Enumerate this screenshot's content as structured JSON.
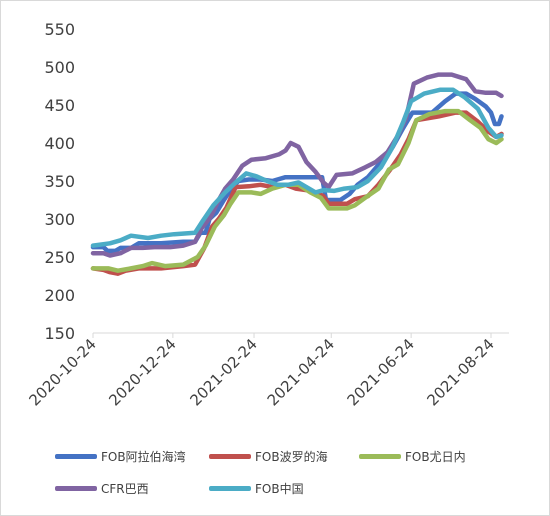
{
  "chart_data": {
    "type": "line",
    "ylim": [
      150,
      550
    ],
    "yticks": [
      150,
      200,
      250,
      300,
      350,
      400,
      450,
      500,
      550
    ],
    "xlim": [
      "2020-10-24",
      "2021-09-01"
    ],
    "xticks": [
      "2020-10-24",
      "2020-12-24",
      "2021-02-24",
      "2021-04-24",
      "2021-06-24",
      "2021-08-24"
    ],
    "grid": false,
    "legend_position": "bottom",
    "series": [
      {
        "name": "FOB阿拉伯海湾",
        "color": "#4472c4",
        "points": [
          [
            "2020-10-24",
            263
          ],
          [
            "2020-11-01",
            263
          ],
          [
            "2020-11-04",
            258
          ],
          [
            "2020-11-10",
            258
          ],
          [
            "2020-11-14",
            262
          ],
          [
            "2020-11-22",
            262
          ],
          [
            "2020-11-28",
            268
          ],
          [
            "2020-12-15",
            268
          ],
          [
            "2021-01-01",
            270
          ],
          [
            "2021-01-10",
            270
          ],
          [
            "2021-01-14",
            282
          ],
          [
            "2021-01-18",
            282
          ],
          [
            "2021-01-21",
            300
          ],
          [
            "2021-01-26",
            308
          ],
          [
            "2021-02-01",
            325
          ],
          [
            "2021-02-06",
            338
          ],
          [
            "2021-02-12",
            350
          ],
          [
            "2021-02-20",
            352
          ],
          [
            "2021-03-01",
            352
          ],
          [
            "2021-03-10",
            350
          ],
          [
            "2021-03-20",
            355
          ],
          [
            "2021-04-01",
            355
          ],
          [
            "2021-04-17",
            355
          ],
          [
            "2021-04-20",
            325
          ],
          [
            "2021-05-01",
            325
          ],
          [
            "2021-05-08",
            333
          ],
          [
            "2021-05-14",
            345
          ],
          [
            "2021-05-22",
            355
          ],
          [
            "2021-06-01",
            375
          ],
          [
            "2021-06-10",
            395
          ],
          [
            "2021-06-18",
            420
          ],
          [
            "2021-06-25",
            440
          ],
          [
            "2021-07-10",
            440
          ],
          [
            "2021-07-20",
            455
          ],
          [
            "2021-07-28",
            465
          ],
          [
            "2021-08-05",
            465
          ],
          [
            "2021-08-12",
            458
          ],
          [
            "2021-08-20",
            448
          ],
          [
            "2021-08-24",
            440
          ],
          [
            "2021-08-27",
            425
          ],
          [
            "2021-08-30",
            425
          ],
          [
            "2021-09-01",
            435
          ]
        ]
      },
      {
        "name": "FOB波罗的海",
        "color": "#c0504d",
        "points": [
          [
            "2020-10-24",
            235
          ],
          [
            "2020-11-01",
            233
          ],
          [
            "2020-11-06",
            230
          ],
          [
            "2020-11-12",
            228
          ],
          [
            "2020-11-18",
            232
          ],
          [
            "2020-11-28",
            235
          ],
          [
            "2020-12-15",
            235
          ],
          [
            "2021-01-01",
            238
          ],
          [
            "2021-01-10",
            240
          ],
          [
            "2021-01-17",
            262
          ],
          [
            "2021-01-23",
            290
          ],
          [
            "2021-01-28",
            300
          ],
          [
            "2021-02-03",
            315
          ],
          [
            "2021-02-10",
            342
          ],
          [
            "2021-02-20",
            343
          ],
          [
            "2021-03-01",
            345
          ],
          [
            "2021-03-10",
            342
          ],
          [
            "2021-03-20",
            345
          ],
          [
            "2021-03-28",
            340
          ],
          [
            "2021-04-05",
            338
          ],
          [
            "2021-04-12",
            335
          ],
          [
            "2021-04-18",
            330
          ],
          [
            "2021-04-22",
            320
          ],
          [
            "2021-05-06",
            320
          ],
          [
            "2021-05-12",
            326
          ],
          [
            "2021-05-22",
            330
          ],
          [
            "2021-05-30",
            345
          ],
          [
            "2021-06-08",
            365
          ],
          [
            "2021-06-16",
            385
          ],
          [
            "2021-06-22",
            405
          ],
          [
            "2021-06-28",
            430
          ],
          [
            "2021-07-15",
            435
          ],
          [
            "2021-07-28",
            440
          ],
          [
            "2021-08-05",
            440
          ],
          [
            "2021-08-14",
            428
          ],
          [
            "2021-08-22",
            415
          ],
          [
            "2021-08-28",
            408
          ],
          [
            "2021-09-01",
            412
          ]
        ]
      },
      {
        "name": "FOB尤日内",
        "color": "#9bbb59",
        "points": [
          [
            "2020-10-24",
            235
          ],
          [
            "2020-11-05",
            235
          ],
          [
            "2020-11-12",
            232
          ],
          [
            "2020-11-22",
            235
          ],
          [
            "2020-12-01",
            238
          ],
          [
            "2020-12-08",
            242
          ],
          [
            "2020-12-18",
            238
          ],
          [
            "2021-01-01",
            240
          ],
          [
            "2021-01-12",
            250
          ],
          [
            "2021-01-18",
            265
          ],
          [
            "2021-01-25",
            290
          ],
          [
            "2021-02-01",
            305
          ],
          [
            "2021-02-06",
            320
          ],
          [
            "2021-02-12",
            335
          ],
          [
            "2021-02-22",
            335
          ],
          [
            "2021-03-01",
            333
          ],
          [
            "2021-03-10",
            340
          ],
          [
            "2021-03-20",
            345
          ],
          [
            "2021-03-30",
            345
          ],
          [
            "2021-04-08",
            335
          ],
          [
            "2021-04-16",
            328
          ],
          [
            "2021-04-22",
            314
          ],
          [
            "2021-05-06",
            314
          ],
          [
            "2021-05-12",
            318
          ],
          [
            "2021-05-20",
            328
          ],
          [
            "2021-05-30",
            340
          ],
          [
            "2021-06-07",
            365
          ],
          [
            "2021-06-14",
            372
          ],
          [
            "2021-06-22",
            400
          ],
          [
            "2021-06-28",
            430
          ],
          [
            "2021-07-08",
            438
          ],
          [
            "2021-07-20",
            442
          ],
          [
            "2021-07-30",
            442
          ],
          [
            "2021-08-08",
            430
          ],
          [
            "2021-08-16",
            420
          ],
          [
            "2021-08-22",
            405
          ],
          [
            "2021-08-28",
            400
          ],
          [
            "2021-09-01",
            405
          ]
        ]
      },
      {
        "name": "CFR巴西",
        "color": "#8064a2",
        "points": [
          [
            "2020-10-24",
            255
          ],
          [
            "2020-11-01",
            255
          ],
          [
            "2020-11-06",
            252
          ],
          [
            "2020-11-14",
            255
          ],
          [
            "2020-11-22",
            262
          ],
          [
            "2020-12-01",
            262
          ],
          [
            "2020-12-10",
            263
          ],
          [
            "2020-12-22",
            263
          ],
          [
            "2021-01-01",
            265
          ],
          [
            "2021-01-10",
            270
          ],
          [
            "2021-01-15",
            288
          ],
          [
            "2021-01-22",
            303
          ],
          [
            "2021-01-28",
            325
          ],
          [
            "2021-02-02",
            340
          ],
          [
            "2021-02-08",
            352
          ],
          [
            "2021-02-15",
            370
          ],
          [
            "2021-02-22",
            378
          ],
          [
            "2021-03-05",
            380
          ],
          [
            "2021-03-15",
            385
          ],
          [
            "2021-03-20",
            390
          ],
          [
            "2021-03-24",
            400
          ],
          [
            "2021-03-30",
            395
          ],
          [
            "2021-04-05",
            375
          ],
          [
            "2021-04-12",
            362
          ],
          [
            "2021-04-18",
            348
          ],
          [
            "2021-04-22",
            342
          ],
          [
            "2021-04-28",
            358
          ],
          [
            "2021-05-10",
            360
          ],
          [
            "2021-05-20",
            368
          ],
          [
            "2021-05-28",
            375
          ],
          [
            "2021-06-06",
            388
          ],
          [
            "2021-06-14",
            410
          ],
          [
            "2021-06-20",
            432
          ],
          [
            "2021-06-26",
            478
          ],
          [
            "2021-07-06",
            486
          ],
          [
            "2021-07-15",
            490
          ],
          [
            "2021-07-25",
            490
          ],
          [
            "2021-08-05",
            484
          ],
          [
            "2021-08-12",
            468
          ],
          [
            "2021-08-20",
            466
          ],
          [
            "2021-08-28",
            466
          ],
          [
            "2021-09-01",
            462
          ]
        ]
      },
      {
        "name": "FOB中国",
        "color": "#4bacc6",
        "points": [
          [
            "2020-10-24",
            265
          ],
          [
            "2020-11-06",
            268
          ],
          [
            "2020-11-14",
            272
          ],
          [
            "2020-11-22",
            278
          ],
          [
            "2020-12-05",
            275
          ],
          [
            "2020-12-15",
            278
          ],
          [
            "2020-12-25",
            280
          ],
          [
            "2021-01-10",
            282
          ],
          [
            "2021-01-16",
            298
          ],
          [
            "2021-01-24",
            318
          ],
          [
            "2021-02-02",
            335
          ],
          [
            "2021-02-10",
            348
          ],
          [
            "2021-02-18",
            360
          ],
          [
            "2021-02-26",
            356
          ],
          [
            "2021-03-06",
            350
          ],
          [
            "2021-03-14",
            345
          ],
          [
            "2021-03-22",
            345
          ],
          [
            "2021-03-30",
            348
          ],
          [
            "2021-04-05",
            342
          ],
          [
            "2021-04-12",
            335
          ],
          [
            "2021-04-18",
            338
          ],
          [
            "2021-04-26",
            337
          ],
          [
            "2021-05-04",
            340
          ],
          [
            "2021-05-14",
            342
          ],
          [
            "2021-05-22",
            350
          ],
          [
            "2021-06-01",
            368
          ],
          [
            "2021-06-10",
            395
          ],
          [
            "2021-06-18",
            428
          ],
          [
            "2021-06-24",
            455
          ],
          [
            "2021-07-04",
            465
          ],
          [
            "2021-07-16",
            470
          ],
          [
            "2021-07-26",
            470
          ],
          [
            "2021-08-04",
            460
          ],
          [
            "2021-08-14",
            445
          ],
          [
            "2021-08-22",
            420
          ],
          [
            "2021-08-28",
            408
          ],
          [
            "2021-09-01",
            410
          ]
        ]
      }
    ]
  }
}
